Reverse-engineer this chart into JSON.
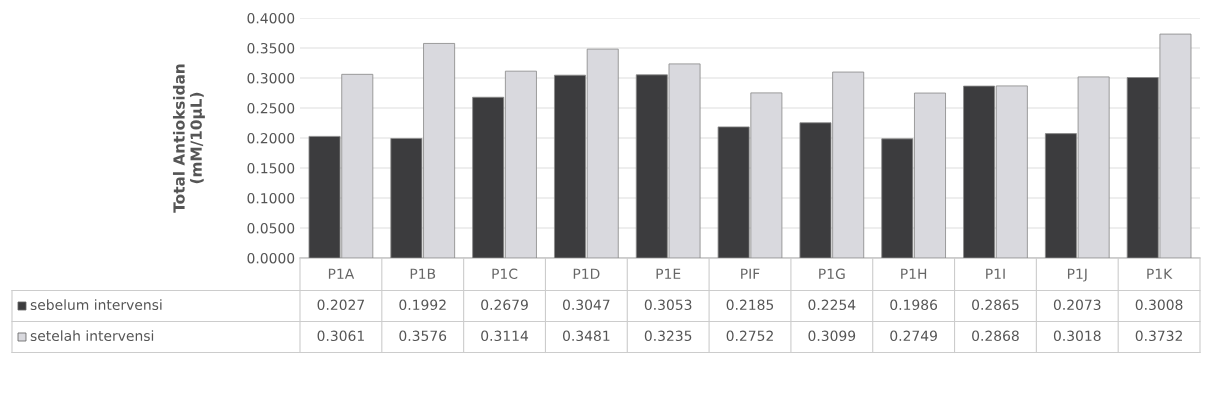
{
  "chart_data": {
    "type": "bar",
    "ylabel": "Total Antioksidan\n(mM/10µL)",
    "categories": [
      "P1A",
      "P1B",
      "P1C",
      "P1D",
      "P1E",
      "PIF",
      "P1G",
      "P1H",
      "P1I",
      "P1J",
      "P1K"
    ],
    "series": [
      {
        "name": "sebelum intervensi",
        "color": "#3c3c3e",
        "values": [
          0.2027,
          0.1992,
          0.2679,
          0.3047,
          0.3053,
          0.2185,
          0.2254,
          0.1986,
          0.2865,
          0.2073,
          0.3008
        ]
      },
      {
        "name": "setelah intervensi",
        "color": "#d9d9de",
        "values": [
          0.3061,
          0.3576,
          0.3114,
          0.3481,
          0.3235,
          0.2752,
          0.3099,
          0.2749,
          0.2868,
          0.3018,
          0.3732
        ]
      }
    ],
    "ylim": [
      0,
      0.4
    ],
    "yticks": [
      {
        "value": 0,
        "label": "0.0000"
      },
      {
        "value": 0.05,
        "label": "0.0500"
      },
      {
        "value": 0.1,
        "label": "0.1000"
      },
      {
        "value": 0.15,
        "label": "0.1500"
      },
      {
        "value": 0.2,
        "label": "0.2000"
      },
      {
        "value": 0.25,
        "label": "0.2500"
      },
      {
        "value": 0.3,
        "label": "0.3000"
      },
      {
        "value": 0.35,
        "label": "0.3500"
      },
      {
        "value": 0.4,
        "label": "0.4000"
      }
    ],
    "grid": "y",
    "legend": "bottom",
    "data_labels": true
  }
}
